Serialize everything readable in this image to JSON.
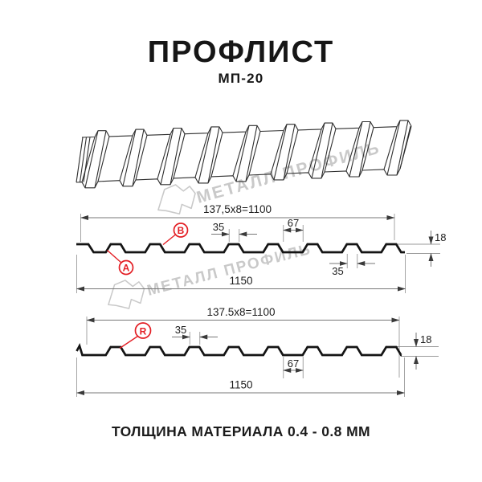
{
  "title": "ПРОФЛИСТ",
  "subtitle": "МП-20",
  "footer": "ТОЛЩИНА МАТЕРИАЛА 0.4 - 0.8 ММ",
  "watermark": {
    "text": "МЕТАЛЛ ПРОФИЛЬ",
    "logo_icon": "metall-profil-logo"
  },
  "colors": {
    "accent_red": "#e31e24",
    "profile_line": "#141414",
    "dimension_line": "#777777",
    "watermark_gray": "#c9c9c9"
  },
  "section1": {
    "dim_coverage": "137,5x8=1100",
    "dim_flange_top": "35",
    "dim_valley": "67",
    "dim_height": "18",
    "dim_flange_bottom": "35",
    "dim_overall": "1150",
    "label_a": "A",
    "label_b": "B"
  },
  "section2": {
    "dim_coverage": "137.5x8=1100",
    "dim_flange": "35",
    "dim_valley": "67",
    "dim_height": "18",
    "dim_overall": "1150",
    "label_r": "R"
  }
}
